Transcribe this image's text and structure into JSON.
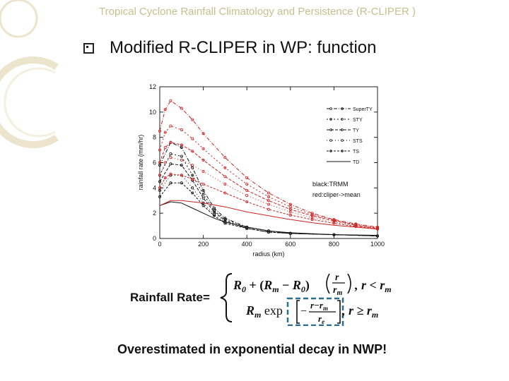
{
  "header": {
    "title": "Tropical Cyclone Rainfall Climatology and Persistence (R-CLIPER )"
  },
  "bullet": {
    "text": "Modified R-CLIPER in WP: function"
  },
  "chart_data": {
    "type": "line",
    "xlabel": "radius (km)",
    "ylabel": "rainfall rate (mm/hr)",
    "xlim": [
      0,
      1000
    ],
    "ylim": [
      0,
      12
    ],
    "xticks": [
      "0",
      "200",
      "400",
      "600",
      "800",
      "1000"
    ],
    "yticks": [
      "0",
      "2",
      "4",
      "6",
      "8",
      "10",
      "12"
    ],
    "legend": [
      "SuperTY",
      "STY",
      "TY",
      "STS",
      "TS",
      "TD"
    ],
    "annotations": [
      "black:TRMM",
      "red:cliper->mean"
    ],
    "colors": {
      "trmm": "#111111",
      "cliper": "#cc2222"
    },
    "series": [
      {
        "name": "SuperTY",
        "source": "TRMM",
        "x": [
          0,
          50,
          100,
          150,
          200,
          250,
          300,
          400,
          500,
          600,
          800,
          1000
        ],
        "y": [
          5.8,
          7.6,
          7.2,
          5.6,
          3.8,
          2.4,
          1.6,
          0.9,
          0.6,
          0.4,
          0.3,
          0.2
        ]
      },
      {
        "name": "STY",
        "source": "TRMM",
        "x": [
          0,
          50,
          100,
          150,
          200,
          250,
          300,
          400,
          500,
          600,
          800,
          1000
        ],
        "y": [
          5.0,
          6.7,
          6.5,
          5.0,
          3.5,
          2.2,
          1.5,
          0.9,
          0.6,
          0.4,
          0.3,
          0.2
        ]
      },
      {
        "name": "TY",
        "source": "TRMM",
        "x": [
          0,
          50,
          100,
          150,
          200,
          250,
          300,
          400,
          500,
          600,
          800,
          1000
        ],
        "y": [
          4.5,
          5.9,
          5.8,
          4.6,
          3.2,
          2.1,
          1.4,
          0.8,
          0.5,
          0.4,
          0.3,
          0.2
        ]
      },
      {
        "name": "STS",
        "source": "TRMM",
        "x": [
          0,
          50,
          100,
          150,
          200,
          250,
          300,
          400,
          500,
          600,
          800,
          1000
        ],
        "y": [
          3.8,
          5.0,
          5.0,
          4.0,
          2.8,
          1.9,
          1.3,
          0.8,
          0.5,
          0.4,
          0.3,
          0.2
        ]
      },
      {
        "name": "TS",
        "source": "TRMM",
        "x": [
          0,
          50,
          100,
          150,
          200,
          250,
          300,
          400,
          500,
          600,
          800,
          1000
        ],
        "y": [
          3.3,
          4.4,
          4.4,
          3.6,
          2.6,
          1.8,
          1.2,
          0.8,
          0.5,
          0.4,
          0.3,
          0.2
        ]
      },
      {
        "name": "TD",
        "source": "TRMM",
        "x": [
          0,
          50,
          100,
          150,
          200,
          250,
          300,
          400,
          500,
          600,
          800,
          1000
        ],
        "y": [
          2.6,
          2.9,
          2.8,
          2.4,
          2.0,
          1.6,
          1.3,
          0.9,
          0.6,
          0.45,
          0.3,
          0.25
        ]
      },
      {
        "name": "SuperTY",
        "source": "cliper",
        "x": [
          0,
          25,
          50,
          100,
          150,
          200,
          300,
          400,
          500,
          600,
          700,
          800,
          900,
          1000
        ],
        "y": [
          8.5,
          10.2,
          10.9,
          10.3,
          9.4,
          8.3,
          6.4,
          4.8,
          3.6,
          2.7,
          2.0,
          1.5,
          1.15,
          0.9
        ]
      },
      {
        "name": "STY",
        "source": "cliper",
        "x": [
          0,
          25,
          50,
          100,
          150,
          200,
          300,
          400,
          500,
          600,
          700,
          800,
          900,
          1000
        ],
        "y": [
          7.0,
          8.4,
          8.9,
          8.6,
          7.9,
          7.1,
          5.6,
          4.3,
          3.3,
          2.5,
          1.9,
          1.45,
          1.1,
          0.85
        ]
      },
      {
        "name": "TY",
        "source": "cliper",
        "x": [
          0,
          25,
          50,
          100,
          150,
          200,
          300,
          400,
          500,
          600,
          700,
          800,
          900,
          1000
        ],
        "y": [
          6.0,
          7.2,
          7.6,
          7.4,
          6.9,
          6.2,
          4.9,
          3.8,
          3.0,
          2.3,
          1.8,
          1.4,
          1.05,
          0.8
        ]
      },
      {
        "name": "STS",
        "source": "cliper",
        "x": [
          0,
          25,
          50,
          100,
          150,
          200,
          300,
          400,
          500,
          600,
          700,
          800,
          900,
          1000
        ],
        "y": [
          5.0,
          6.0,
          6.4,
          6.2,
          5.8,
          5.3,
          4.3,
          3.4,
          2.7,
          2.1,
          1.65,
          1.3,
          1.0,
          0.8
        ]
      },
      {
        "name": "TS",
        "source": "cliper",
        "x": [
          0,
          25,
          50,
          100,
          150,
          200,
          300,
          400,
          500,
          600,
          700,
          800,
          900,
          1000
        ],
        "y": [
          4.0,
          4.8,
          5.1,
          5.0,
          4.7,
          4.3,
          3.6,
          2.9,
          2.3,
          1.85,
          1.5,
          1.2,
          0.95,
          0.75
        ]
      },
      {
        "name": "TD",
        "source": "cliper",
        "x": [
          0,
          50,
          100,
          200,
          300,
          400,
          500,
          600,
          700,
          800,
          900,
          1000
        ],
        "y": [
          2.6,
          3.0,
          3.0,
          2.8,
          2.5,
          2.1,
          1.8,
          1.5,
          1.25,
          1.05,
          0.9,
          0.75
        ]
      }
    ]
  },
  "formula": {
    "label": "Rainfall Rate=",
    "case1": {
      "R0": "R",
      "R0_sub": "0",
      "plus": " + (",
      "Rm": "R",
      "Rm_sub": "m",
      "minus": " − ",
      "R0b": "R",
      "R0b_sub": "0",
      "close": ")",
      "num": "r",
      "den": "r",
      "den_sub": "m",
      "cond": ", r < r",
      "cond_sub": "m"
    },
    "case2": {
      "Rm": "R",
      "Rm_sub": "m",
      "exp": " exp",
      "neg": "−",
      "num": "r−r",
      "num_sub": "m",
      "den": "r",
      "den_sub": "e",
      "cond": ", r ≥ r",
      "cond_sub": "m"
    }
  },
  "caption": {
    "text": "Overestimated in exponential decay in NWP!"
  }
}
